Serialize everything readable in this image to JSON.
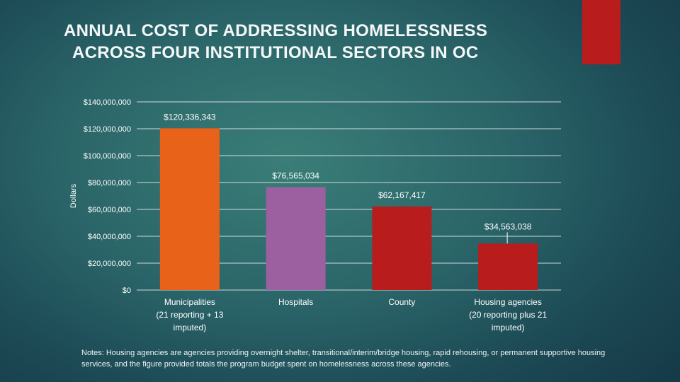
{
  "title_line1": "ANNUAL COST OF ADDRESSING HOMELESSNESS",
  "title_line2": "ACROSS FOUR INSTITUTIONAL SECTORS IN OC",
  "notes": "Notes: Housing agencies are agencies providing overnight shelter, transitional/interim/bridge housing, rapid rehousing, or permanent supportive housing services, and the figure provided totals the program budget spent on homelessness across these agencies.",
  "colors": {
    "accent_bar": "#b81c1c",
    "gridline": "#e9eeee"
  },
  "chart_data": {
    "type": "bar",
    "title": "ANNUAL COST OF ADDRESSING HOMELESSNESS ACROSS FOUR INSTITUTIONAL SECTORS IN OC",
    "xlabel": "",
    "ylabel": "Dollars",
    "ylim": [
      0,
      140000000
    ],
    "grid": true,
    "yticks": [
      "$0",
      "$20,000,000",
      "$40,000,000",
      "$60,000,000",
      "$80,000,000",
      "$100,000,000",
      "$120,000,000",
      "$140,000,000"
    ],
    "categories": [
      [
        "Municipalities",
        "(21 reporting + 13",
        "imputed)"
      ],
      [
        "Hospitals"
      ],
      [
        "County"
      ],
      [
        "Housing agencies",
        "(20 reporting plus 21",
        "imputed)"
      ]
    ],
    "values": [
      120336343,
      76565034,
      62167417,
      34563038
    ],
    "data_labels": [
      "$120,336,343",
      "$76,565,034",
      "$62,167,417",
      "$34,563,038"
    ],
    "colors": [
      "#e8621a",
      "#9c5fa0",
      "#b81c1c",
      "#b81c1c"
    ]
  }
}
